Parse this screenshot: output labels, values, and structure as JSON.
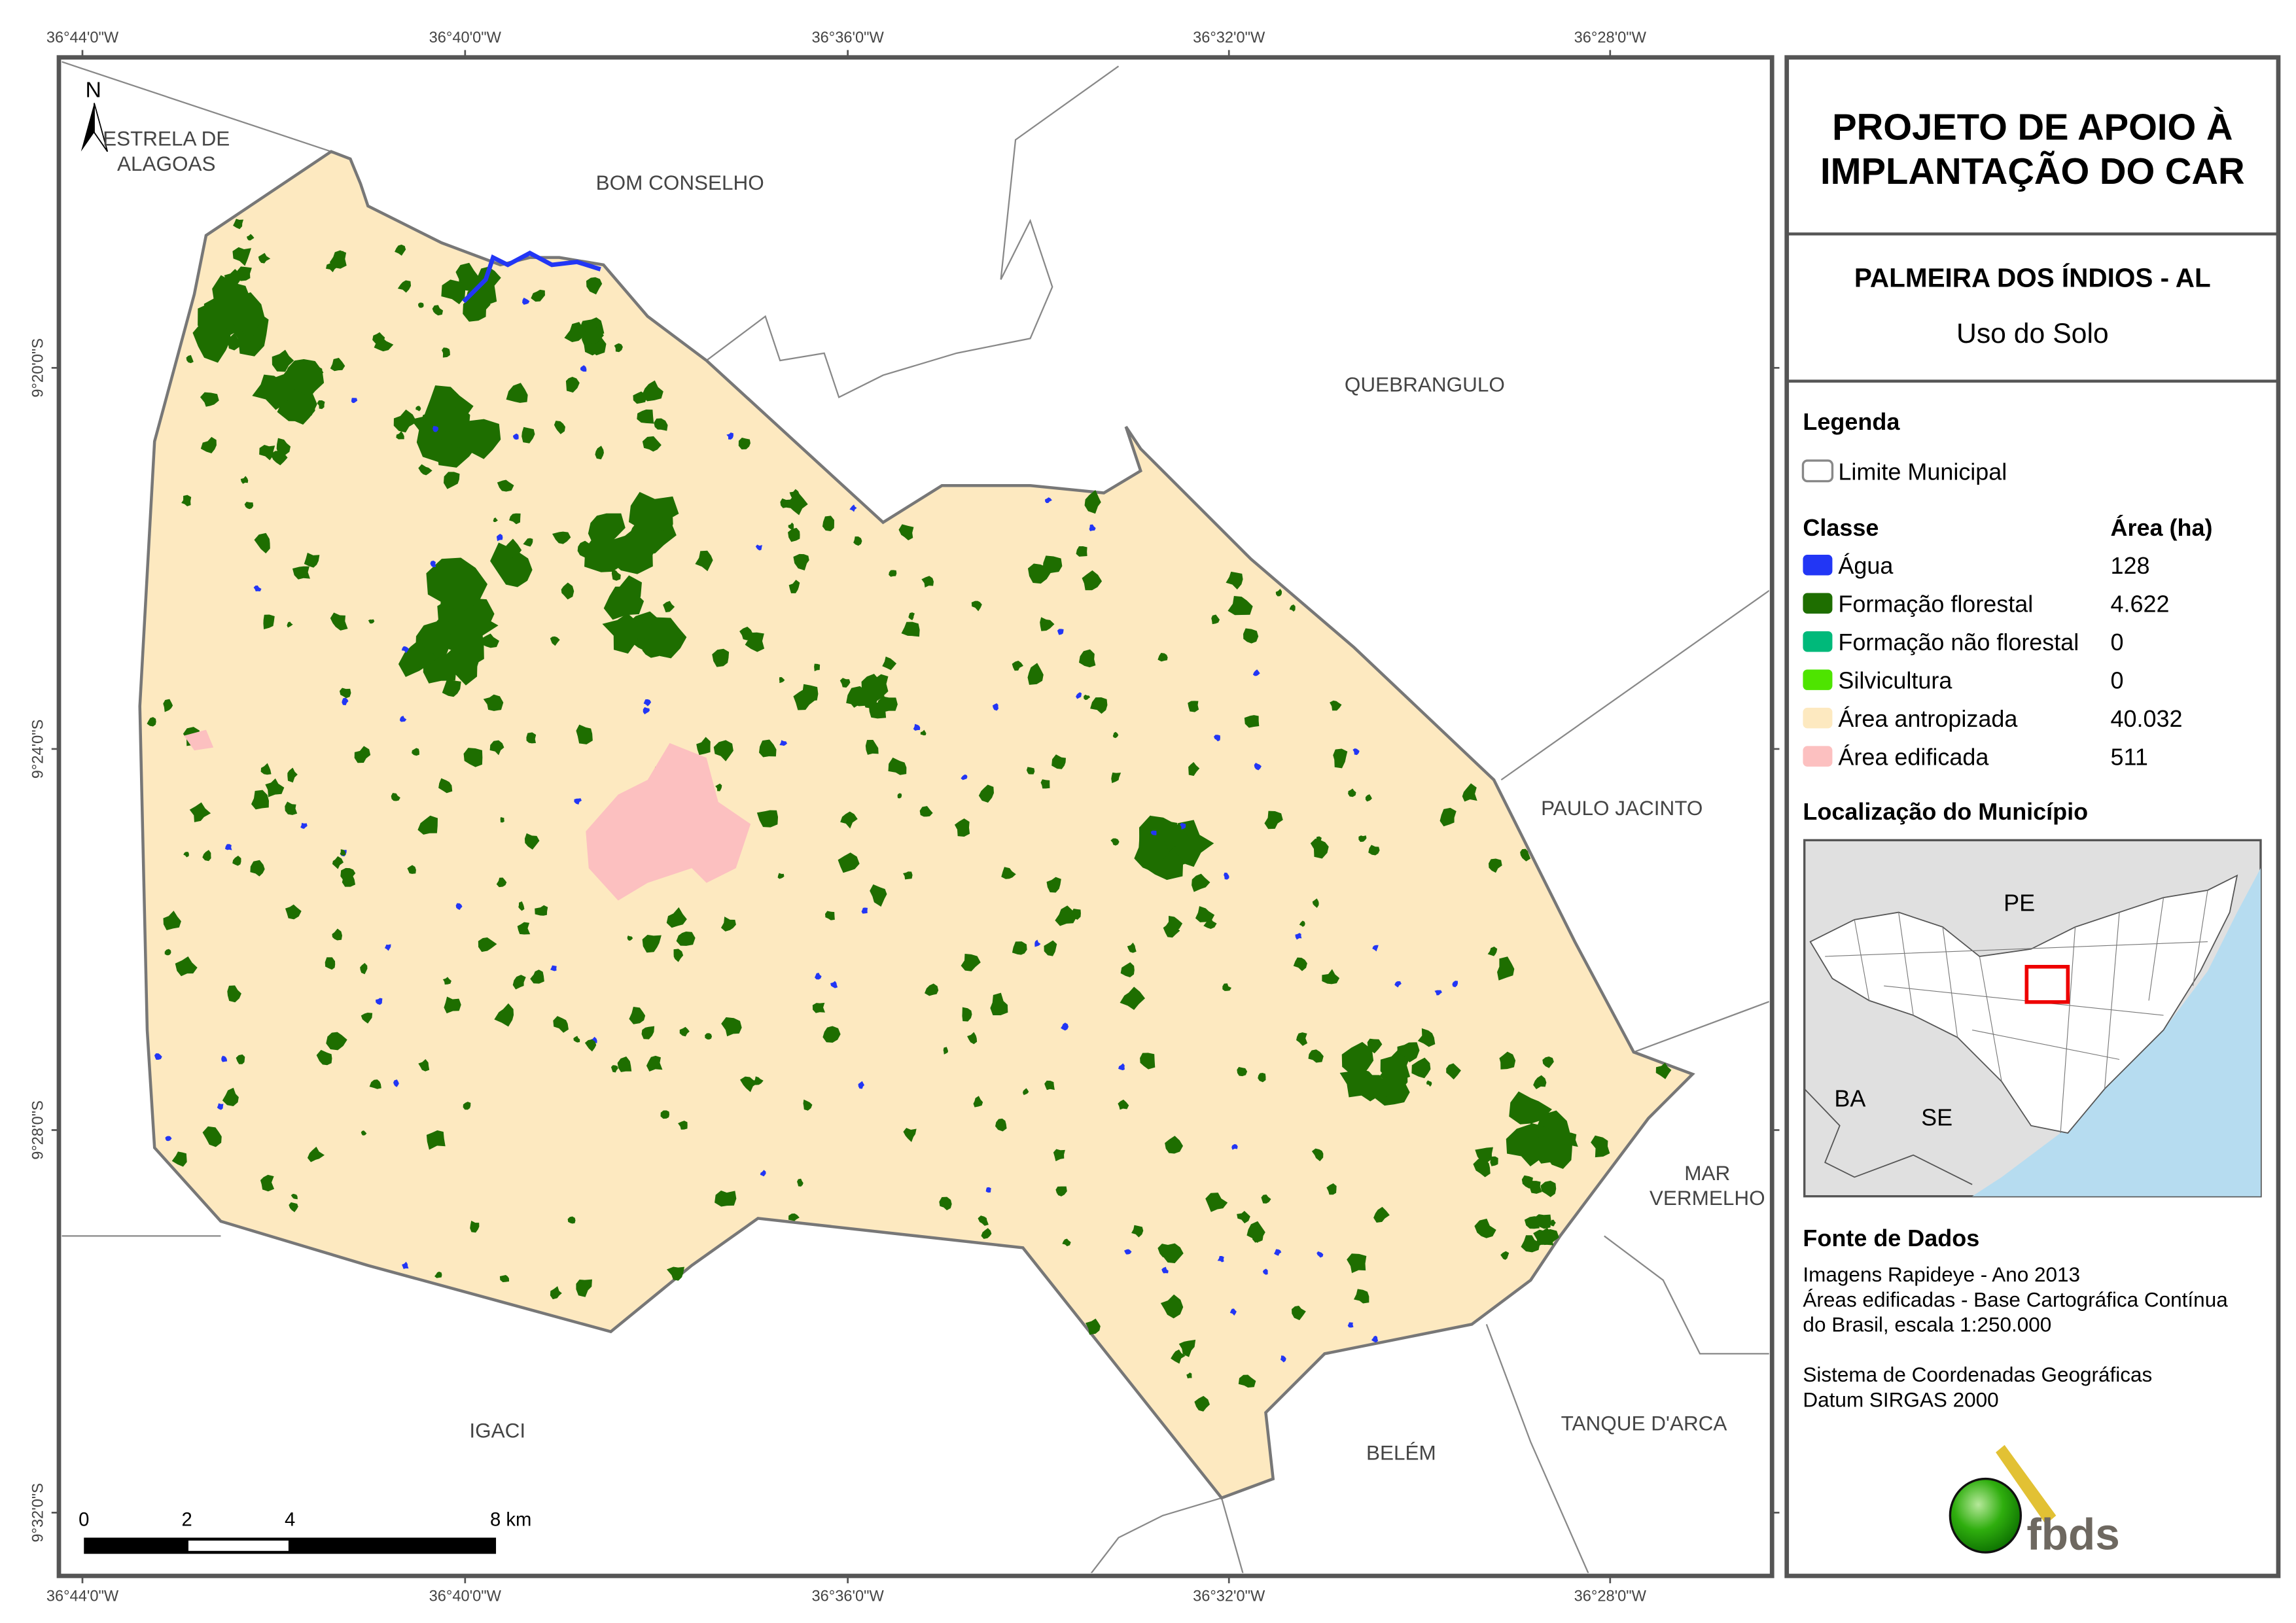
{
  "map": {
    "top_ticks": [
      "36°44'0\"W",
      "36°40'0\"W",
      "36°36'0\"W",
      "36°32'0\"W",
      "36°28'0\"W"
    ],
    "bottom_ticks": [
      "36°44'0\"W",
      "36°40'0\"W",
      "36°36'0\"W",
      "36°32'0\"W",
      "36°28'0\"W"
    ],
    "left_ticks": [
      "9°20'0\"S",
      "9°24'0\"S",
      "9°28'0\"S",
      "9°32'0\"S"
    ],
    "north_label": "N",
    "neighbors": {
      "estrela_1": "ESTRELA DE",
      "estrela_2": "ALAGOAS",
      "bom_conselho": "BOM CONSELHO",
      "quebrangulo": "QUEBRANGULO",
      "paulo_jacinto": "PAULO JACINTO",
      "mar_1": "MAR",
      "mar_2": "VERMELHO",
      "tanque": "TANQUE D'ARCA",
      "belem": "BELÉM",
      "igaci": "IGACI"
    },
    "scale": {
      "labels": [
        "0",
        "2",
        "4",
        "8 km"
      ]
    }
  },
  "panel": {
    "title_1": "PROJETO DE APOIO À",
    "title_2": "IMPLANTAÇÃO DO CAR",
    "municipality": "PALMEIRA DOS ÍNDIOS - AL",
    "subtitle": "Uso do Solo",
    "legend_title": "Legenda",
    "limit_label": "Limite Municipal",
    "class_header": "Classe",
    "area_header": "Área (ha)",
    "classes": [
      {
        "label": "Água",
        "area": "128",
        "color": "#2236f5"
      },
      {
        "label": "Formação florestal",
        "area": "4.622",
        "color": "#1e6e00"
      },
      {
        "label": "Formação não florestal",
        "area": "0",
        "color": "#00b97a"
      },
      {
        "label": "Silvicultura",
        "area": "0",
        "color": "#4ee400"
      },
      {
        "label": "Área antropizada",
        "area": "40.032",
        "color": "#fde9c0"
      },
      {
        "label": "Área edificada",
        "area": "511",
        "color": "#fcc0c0"
      }
    ],
    "location_title": "Localização do Município",
    "inset": {
      "pe": "PE",
      "ba": "BA",
      "se": "SE"
    },
    "source_title": "Fonte de Dados",
    "source_lines": [
      "Imagens Rapideye - Ano 2013",
      "Áreas edificadas - Base Cartográfica Contínua",
      "do Brasil, escala 1:250.000",
      "",
      "Sistema de Coordenadas Geográficas",
      "Datum SIRGAS 2000"
    ],
    "logo_text": "fbds"
  }
}
